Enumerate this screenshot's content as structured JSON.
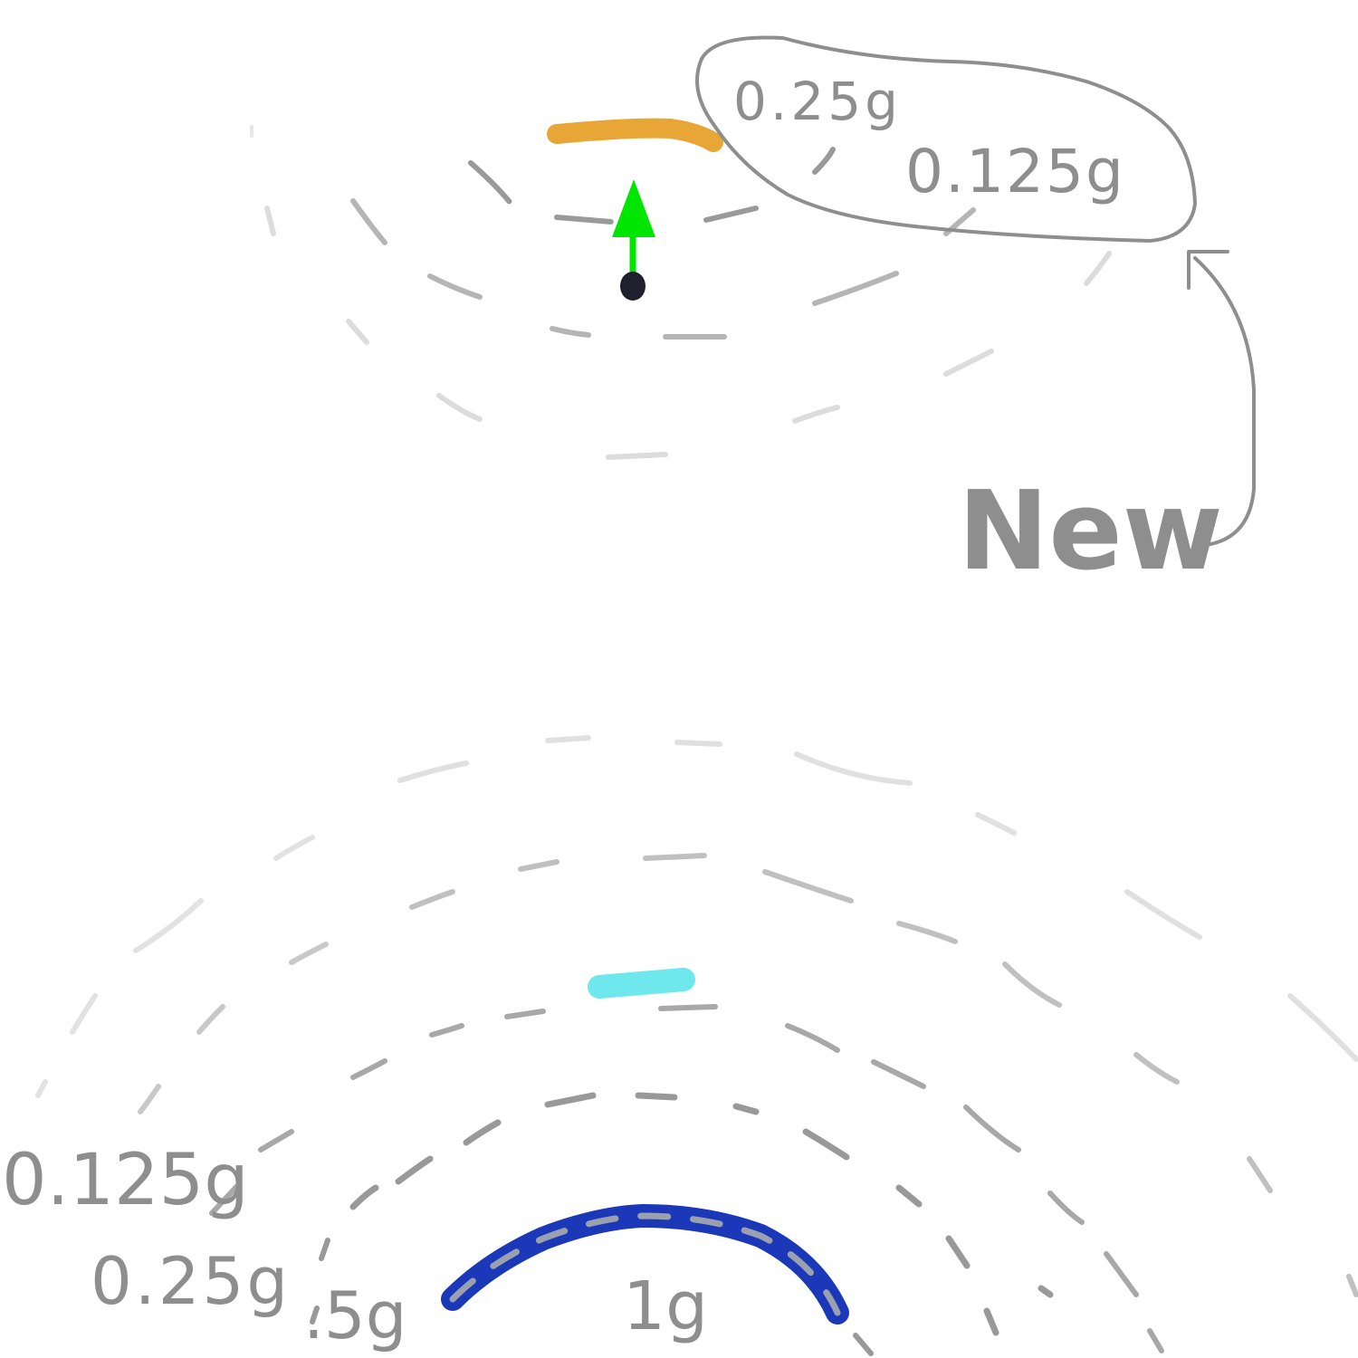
{
  "top_view": {
    "old_marker_color": "#e8a636",
    "new_marker_color": "#00e600",
    "dot_color": "#1f1f2e",
    "callout": {
      "label_025": "0.25g",
      "label_0125": "0.125g",
      "tag": "New"
    }
  },
  "bottom_view": {
    "marker_color": "#6ee8ec",
    "arc_color": "#1a38b8",
    "labels": {
      "l_0125": "0.125g",
      "l_025": "0.25g",
      "l_05": ".5g",
      "l_1": "1g"
    }
  },
  "colors": {
    "ring_dark": "#9a9a9a",
    "ring_mid": "#b8b8b8",
    "ring_light": "#dddddd",
    "ink": "#8e8e8e"
  }
}
